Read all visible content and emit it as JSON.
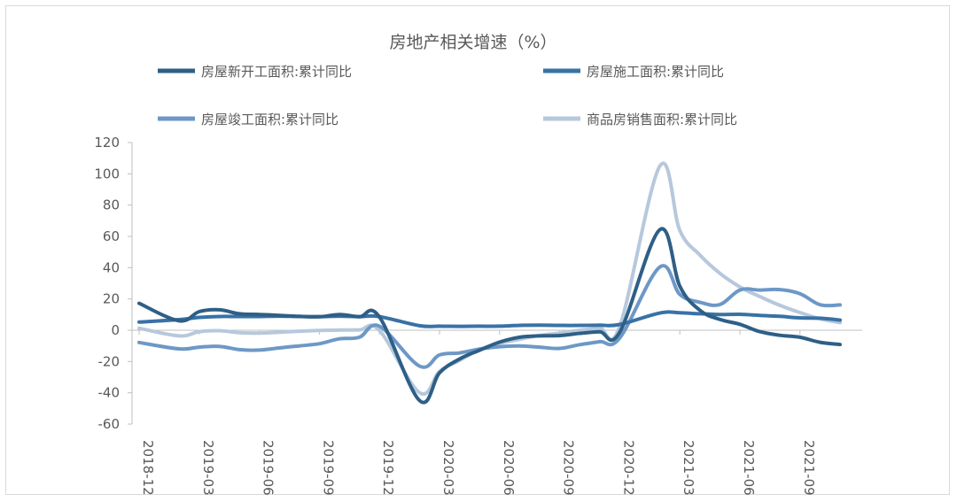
{
  "chart_data": {
    "type": "line",
    "title": "房地产相关增速（%）",
    "xlabel": "",
    "ylabel": "",
    "ylim": [
      -60,
      120
    ],
    "yticks": [
      120,
      100,
      80,
      60,
      40,
      20,
      0,
      -20,
      -40,
      -60
    ],
    "x_tick_labels": [
      "2018-12",
      "2019-03",
      "2019-06",
      "2019-09",
      "2019-12",
      "2020-03",
      "2020-06",
      "2020-09",
      "2020-12",
      "2021-03",
      "2021-06",
      "2021-09"
    ],
    "x": [
      "2018-12",
      "2019-02",
      "2019-03",
      "2019-04",
      "2019-05",
      "2019-06",
      "2019-07",
      "2019-08",
      "2019-09",
      "2019-10",
      "2019-11",
      "2019-12",
      "2020-02",
      "2020-03",
      "2020-04",
      "2020-05",
      "2020-06",
      "2020-07",
      "2020-08",
      "2020-09",
      "2020-10",
      "2020-11",
      "2020-12",
      "2021-02",
      "2021-03",
      "2021-04",
      "2021-05",
      "2021-06",
      "2021-07",
      "2021-08",
      "2021-09",
      "2021-10",
      "2021-11"
    ],
    "grid": false,
    "legend_position": "top",
    "series": [
      {
        "name": "房屋新开工面积:累计同比",
        "color": "#2e5f86",
        "values": [
          17.2,
          6.0,
          11.9,
          13.1,
          10.5,
          10.1,
          9.5,
          8.9,
          8.6,
          10.0,
          8.6,
          8.5,
          -44.9,
          -27.2,
          -18.4,
          -12.8,
          -7.6,
          -4.5,
          -3.6,
          -3.4,
          -2.0,
          -1.0,
          -1.2,
          64.3,
          28.2,
          12.8,
          6.9,
          3.8,
          -0.9,
          -3.2,
          -4.5,
          -7.7,
          -9.1
        ]
      },
      {
        "name": "房屋施工面积:累计同比",
        "color": "#3872a6",
        "values": [
          5.2,
          6.8,
          8.2,
          8.8,
          8.8,
          8.8,
          9.0,
          8.8,
          8.7,
          9.0,
          8.7,
          8.7,
          2.9,
          2.6,
          2.5,
          2.6,
          2.6,
          3.1,
          3.2,
          3.1,
          3.1,
          3.2,
          3.7,
          11.0,
          11.2,
          10.5,
          10.1,
          10.2,
          9.5,
          8.9,
          7.9,
          7.7,
          6.5
        ]
      },
      {
        "name": "房屋竣工面积:累计同比",
        "color": "#6d98c6",
        "values": [
          -7.8,
          -11.9,
          -10.8,
          -10.3,
          -12.4,
          -12.7,
          -11.3,
          -10.0,
          -8.6,
          -5.5,
          -4.5,
          2.6,
          -22.9,
          -15.8,
          -14.5,
          -12.0,
          -10.5,
          -10.1,
          -10.8,
          -11.6,
          -9.2,
          -7.3,
          -4.9,
          40.4,
          22.9,
          17.9,
          16.4,
          25.7,
          25.7,
          26.0,
          23.4,
          16.3,
          16.2
        ]
      },
      {
        "name": "商品房销售面积:累计同比",
        "color": "#b7c8dd",
        "values": [
          1.3,
          -3.6,
          -0.9,
          -0.3,
          -1.6,
          -1.8,
          -1.3,
          -0.6,
          -0.1,
          0.1,
          0.2,
          -0.1,
          -39.9,
          -26.3,
          -19.3,
          -12.3,
          -8.4,
          -5.8,
          -3.3,
          -1.8,
          0.0,
          1.3,
          2.6,
          104.9,
          63.8,
          48.1,
          36.4,
          27.7,
          21.5,
          15.9,
          11.3,
          7.3,
          4.8
        ]
      }
    ]
  }
}
